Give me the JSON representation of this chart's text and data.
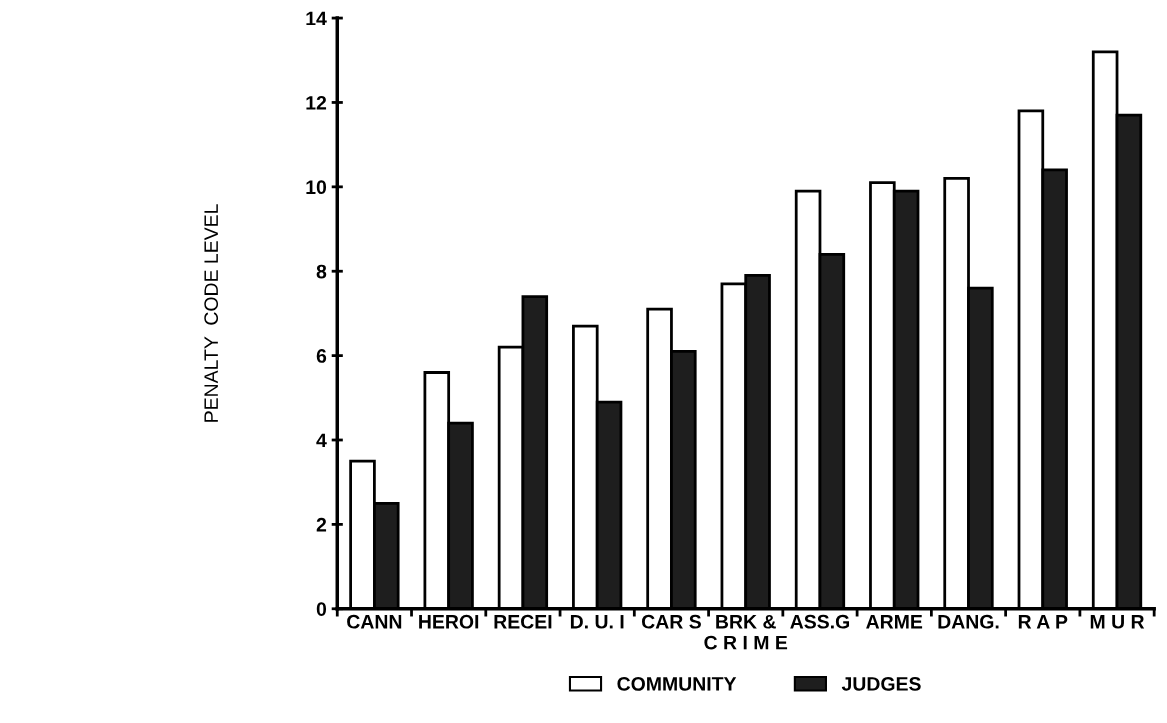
{
  "chart_data": {
    "type": "bar",
    "xlabel": "C R I M E",
    "ylabel": "PENALTY  CODE LEVEL",
    "categories": [
      "CANN",
      "HEROI",
      "RECEI",
      "D. U. I",
      "CAR S",
      "BRK &",
      "ASS.G",
      "ARME",
      "DANG.",
      "R A P",
      "M U R"
    ],
    "series": [
      {
        "name": "COMMUNITY",
        "color": "#ffffff",
        "values": [
          3.5,
          5.6,
          6.2,
          6.7,
          7.1,
          7.7,
          9.9,
          10.1,
          10.2,
          11.8,
          13.2
        ]
      },
      {
        "name": "JUDGES",
        "color": "#1e1e1e",
        "values": [
          2.5,
          4.4,
          7.4,
          4.9,
          6.1,
          7.9,
          8.4,
          9.9,
          7.6,
          10.4,
          11.7
        ]
      }
    ],
    "ylim": [
      0,
      14
    ],
    "yticks": [
      0,
      2,
      4,
      6,
      8,
      10,
      12,
      14
    ],
    "grid": false,
    "legend": "bottom"
  }
}
